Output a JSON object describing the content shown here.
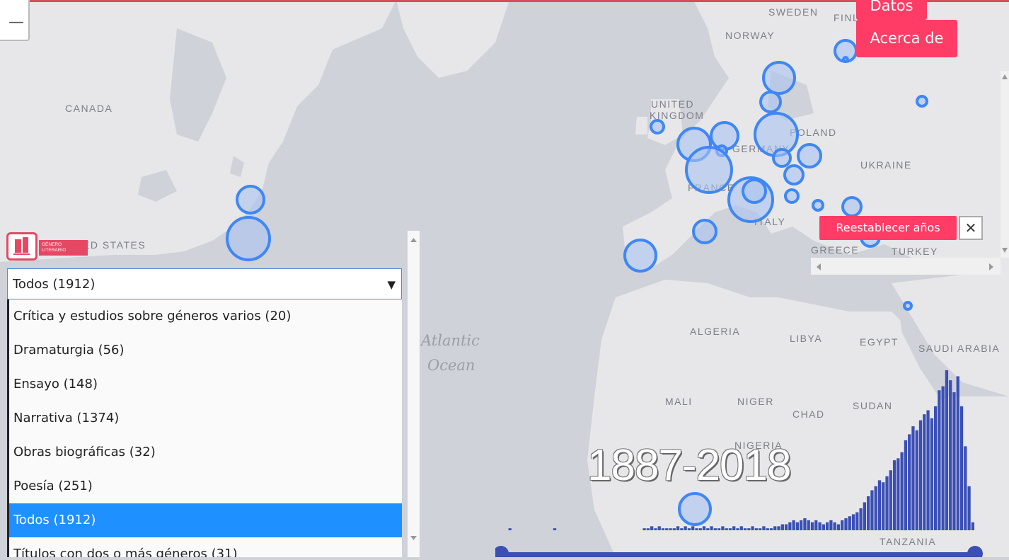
{
  "map": {
    "countries": [
      "CANADA",
      "UNITED",
      "KINGDOM",
      "SWEDEN",
      "FINL",
      "NORWAY",
      "POLAND",
      "GERMANY",
      "UKRAINE",
      "FRANCE",
      "ITALY",
      "GREECE",
      "TURKEY",
      "ED STATES",
      "ALGERIA",
      "LIBYA",
      "EGYPT",
      "SAUDI ARABIA",
      "MALI",
      "NIGER",
      "CHAD",
      "SUDAN",
      "NIGERIA",
      "TANZANIA"
    ],
    "ocean": [
      "Atlantic",
      "Ocean"
    ]
  },
  "nav": {
    "datos": "Datos",
    "acerca": "Acerca de"
  },
  "zoom_out": "—",
  "reset_label": "Reestablecer años",
  "close_label": "✕",
  "logo": {
    "line1": "GÉNERO",
    "line2": "LITERARIO"
  },
  "dropdown": {
    "selected": "Todos (1912)",
    "options": [
      "Crítica y estudios sobre géneros varios (20)",
      "Dramaturgia (56)",
      "Ensayo (148)",
      "Narrativa (1374)",
      "Obras biográficas (32)",
      "Poesía (251)",
      "Todos (1912)",
      "Títulos con dos o más géneros (31)"
    ]
  },
  "year_range": "1887-2018",
  "colors": {
    "accent": "#fe3c66",
    "bubble": "#3f87f5",
    "histogram": "#3b4fb5",
    "selected": "#1e90ff"
  },
  "chart_data": {
    "type": "bar",
    "x_range": [
      1887,
      2018
    ],
    "values": [
      0,
      0,
      1,
      0,
      0,
      0,
      0,
      0,
      0,
      0,
      0,
      0,
      0,
      0,
      1,
      0,
      0,
      0,
      0,
      0,
      0,
      0,
      0,
      0,
      0,
      0,
      0,
      0,
      0,
      0,
      0,
      0,
      0,
      0,
      0,
      0,
      0,
      0,
      1,
      1,
      2,
      1,
      2,
      1,
      1,
      1,
      1,
      2,
      1,
      2,
      1,
      2,
      1,
      1,
      2,
      1,
      2,
      1,
      1,
      2,
      1,
      1,
      2,
      1,
      2,
      1,
      1,
      2,
      1,
      1,
      2,
      1,
      1,
      2,
      2,
      3,
      3,
      4,
      5,
      4,
      5,
      6,
      5,
      4,
      5,
      4,
      3,
      4,
      5,
      4,
      3,
      5,
      6,
      7,
      8,
      9,
      11,
      14,
      17,
      20,
      22,
      25,
      24,
      27,
      30,
      35,
      36,
      39,
      45,
      48,
      52,
      50,
      55,
      58,
      60,
      56,
      62,
      70,
      72,
      80,
      75,
      69,
      77,
      62,
      42,
      22,
      4
    ]
  }
}
